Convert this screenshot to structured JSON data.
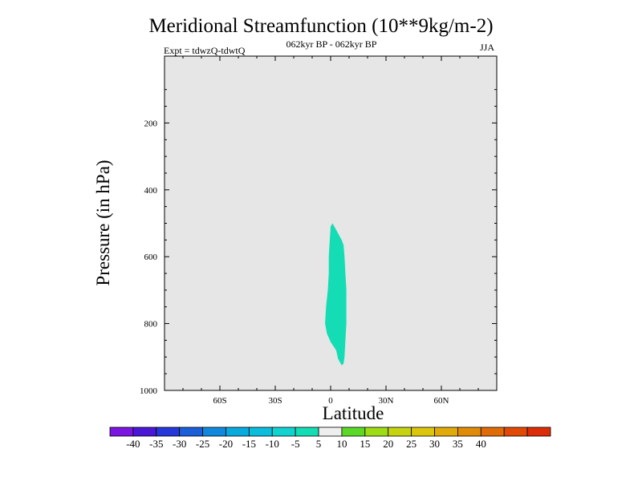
{
  "chart_data": {
    "type": "heatmap",
    "title": "Meridional Streamfunction (10**9kg/m-2)",
    "subtitle": "062kyr BP - 062kyr BP",
    "left_label": "Expt = tdwzQ-tdwtQ",
    "right_label": "JJA",
    "xlabel": "Latitude",
    "ylabel": "Pressure (in hPa)",
    "xlim": [
      -90,
      90
    ],
    "ylim": [
      1000,
      0
    ],
    "y_reversed": true,
    "x_ticks": [
      {
        "value": -60,
        "label": "60S"
      },
      {
        "value": -30,
        "label": "30S"
      },
      {
        "value": 0,
        "label": "0"
      },
      {
        "value": 30,
        "label": "30N"
      },
      {
        "value": 60,
        "label": "60N"
      }
    ],
    "y_ticks": [
      {
        "value": 200,
        "label": "200"
      },
      {
        "value": 400,
        "label": "400"
      },
      {
        "value": 600,
        "label": "600"
      },
      {
        "value": 800,
        "label": "800"
      },
      {
        "value": 1000,
        "label": "1000"
      }
    ],
    "background_color": "#e6e6e6",
    "contour_regions": [
      {
        "level_range": [
          -10,
          -5
        ],
        "color": "#14dcb4",
        "boundary": [
          [
            1,
            500
          ],
          [
            3,
            520
          ],
          [
            6,
            550
          ],
          [
            7,
            565
          ],
          [
            7.5,
            600
          ],
          [
            8,
            650
          ],
          [
            8.5,
            700
          ],
          [
            8.5,
            750
          ],
          [
            8.5,
            800
          ],
          [
            8,
            850
          ],
          [
            7.5,
            900
          ],
          [
            7,
            920
          ],
          [
            6,
            925
          ],
          [
            4,
            905
          ],
          [
            3,
            880
          ],
          [
            0,
            855
          ],
          [
            -2,
            830
          ],
          [
            -3,
            800
          ],
          [
            -2.5,
            750
          ],
          [
            -1.5,
            700
          ],
          [
            -1,
            650
          ],
          [
            -1,
            600
          ],
          [
            -0.5,
            550
          ],
          [
            0,
            510
          ]
        ]
      }
    ],
    "colorbar": {
      "colors": [
        "#7b15e0",
        "#4a18d5",
        "#2638d8",
        "#1a5ed8",
        "#0f88dd",
        "#08aadd",
        "#0bbcdc",
        "#10d2d0",
        "#14dcb4",
        "#eeeeee",
        "#5cd828",
        "#9edc16",
        "#c6d310",
        "#dcc60d",
        "#e0aa0a",
        "#e08c08",
        "#e06c08",
        "#e04a06",
        "#dc2c08"
      ],
      "labels": [
        "-40",
        "-35",
        "-30",
        "-25",
        "-20",
        "-15",
        "-10",
        "-5",
        "5",
        "10",
        "15",
        "20",
        "25",
        "30",
        "35",
        "40"
      ]
    }
  }
}
